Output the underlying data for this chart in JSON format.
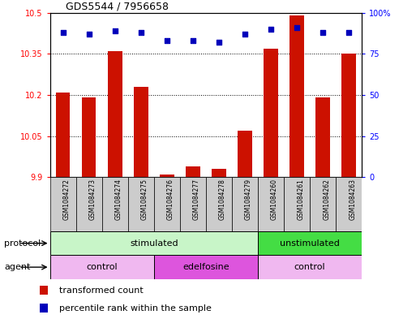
{
  "title": "GDS5544 / 7956658",
  "samples": [
    "GSM1084272",
    "GSM1084273",
    "GSM1084274",
    "GSM1084275",
    "GSM1084276",
    "GSM1084277",
    "GSM1084278",
    "GSM1084279",
    "GSM1084260",
    "GSM1084261",
    "GSM1084262",
    "GSM1084263"
  ],
  "red_values": [
    10.21,
    10.19,
    10.36,
    10.23,
    9.91,
    9.94,
    9.93,
    10.07,
    10.37,
    10.49,
    10.19,
    10.35
  ],
  "blue_values": [
    88,
    87,
    89,
    88,
    83,
    83,
    82,
    87,
    90,
    91,
    88,
    88
  ],
  "ylim_left": [
    9.9,
    10.5
  ],
  "ylim_right": [
    0,
    100
  ],
  "yticks_left": [
    9.9,
    10.05,
    10.2,
    10.35,
    10.5
  ],
  "yticks_right": [
    0,
    25,
    50,
    75,
    100
  ],
  "ytick_labels_left": [
    "9.9",
    "10.05",
    "10.2",
    "10.35",
    "10.5"
  ],
  "ytick_labels_right": [
    "0",
    "25",
    "50",
    "75",
    "100%"
  ],
  "protocol_groups": [
    {
      "label": "stimulated",
      "start": 0,
      "end": 8,
      "color": "#c8f5c8"
    },
    {
      "label": "unstimulated",
      "start": 8,
      "end": 12,
      "color": "#44dd44"
    }
  ],
  "agent_groups": [
    {
      "label": "control",
      "start": 0,
      "end": 4,
      "color": "#f0b8f0"
    },
    {
      "label": "edelfosine",
      "start": 4,
      "end": 8,
      "color": "#dd55dd"
    },
    {
      "label": "control",
      "start": 8,
      "end": 12,
      "color": "#f0b8f0"
    }
  ],
  "bar_color": "#cc1100",
  "dot_color": "#0000bb",
  "bar_width": 0.55,
  "grid_color": "#000000",
  "background_color": "#ffffff",
  "xtick_bg": "#cccccc",
  "label_protocol": "protocol",
  "label_agent": "agent",
  "legend_red": "transformed count",
  "legend_blue": "percentile rank within the sample"
}
